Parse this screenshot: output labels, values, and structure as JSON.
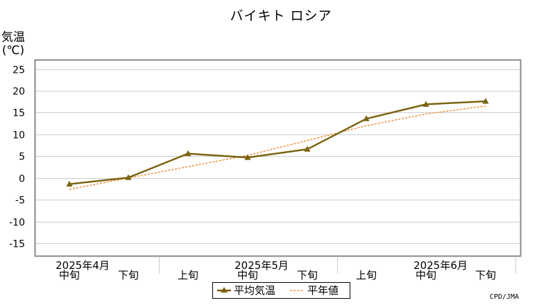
{
  "chart_data": {
    "type": "line",
    "title": "バイキト ロシア",
    "ylabel_line1": "気温",
    "ylabel_line2": "(℃)",
    "ylim": [
      -18,
      27
    ],
    "yticks": [
      25,
      20,
      15,
      10,
      5,
      0,
      -5,
      -10,
      -15
    ],
    "categories": [
      "中旬",
      "下旬",
      "上旬",
      "中旬",
      "下旬",
      "上旬",
      "中旬",
      "下旬"
    ],
    "month_labels": [
      "2025年4月",
      "2025年5月",
      "2025年6月"
    ],
    "series": [
      {
        "name": "平均気温",
        "values": [
          -1.4,
          0.1,
          5.6,
          4.7,
          6.6,
          13.6,
          16.9,
          17.6
        ],
        "color": "#7a6210"
      },
      {
        "name": "平年値",
        "values": [
          -2.6,
          0.0,
          2.6,
          5.2,
          8.6,
          12.0,
          14.7,
          16.5
        ],
        "color": "#e87f1e"
      }
    ],
    "grid": true,
    "legend_position": "bottom-center",
    "credit": "CPD/JMA"
  }
}
